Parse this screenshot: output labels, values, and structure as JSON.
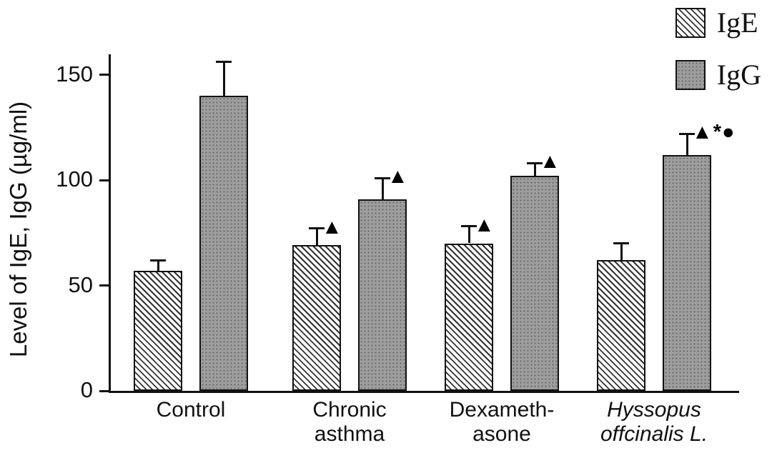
{
  "chart_data": {
    "type": "bar",
    "title": "",
    "xlabel": "",
    "ylabel": "Level of IgE, IgG (µg/ml)",
    "ylim": [
      0,
      160
    ],
    "yticks": [
      0,
      50,
      100,
      150
    ],
    "grid": false,
    "legend_position": "top-right",
    "categories": [
      "Control",
      "Chronic asthma",
      "Dexameth-asone",
      "Hyssopus offcinalis L."
    ],
    "category_lines": [
      [
        "Control"
      ],
      [
        "Chronic",
        "asthma"
      ],
      [
        "Dexameth-",
        "asone"
      ],
      [
        "Hyssopus",
        "offcinalis L."
      ]
    ],
    "category_italic": [
      false,
      false,
      false,
      true
    ],
    "series": [
      {
        "name": "IgE",
        "pattern": "diagonal-hatch",
        "values": [
          57,
          69,
          70,
          62
        ],
        "errors": [
          5,
          8,
          8,
          8
        ],
        "annotations": [
          "",
          "▲",
          "▲",
          ""
        ]
      },
      {
        "name": "IgG",
        "pattern": "gray-speckle",
        "values": [
          140,
          91,
          102,
          112
        ],
        "errors": [
          16,
          10,
          6,
          10
        ],
        "annotations": [
          "",
          "▲",
          "▲",
          "▲*●"
        ]
      }
    ]
  },
  "colors": {
    "axis": "#111111",
    "bar_outline": "#111111",
    "speckle_fill": "#9e9e9e",
    "hatch_line": "#333333"
  }
}
